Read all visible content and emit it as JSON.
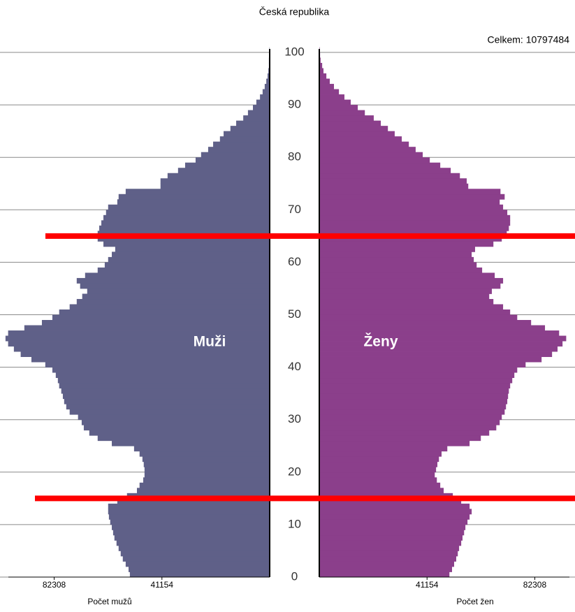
{
  "chart_data": {
    "type": "pyramid",
    "title": "Česká republika",
    "annotation": "Celkem: 10797484",
    "ages": [
      0,
      1,
      2,
      3,
      4,
      5,
      6,
      7,
      8,
      9,
      10,
      11,
      12,
      13,
      14,
      15,
      16,
      17,
      18,
      19,
      20,
      21,
      22,
      23,
      24,
      25,
      26,
      27,
      28,
      29,
      30,
      31,
      32,
      33,
      34,
      35,
      36,
      37,
      38,
      39,
      40,
      41,
      42,
      43,
      44,
      45,
      46,
      47,
      48,
      49,
      50,
      51,
      52,
      53,
      54,
      55,
      56,
      57,
      58,
      59,
      60,
      61,
      62,
      63,
      64,
      65,
      66,
      67,
      68,
      69,
      70,
      71,
      72,
      73,
      74,
      75,
      76,
      77,
      78,
      79,
      80,
      81,
      82,
      83,
      84,
      85,
      86,
      87,
      88,
      89,
      90,
      91,
      92,
      93,
      94,
      95,
      96,
      97,
      98,
      99,
      100
    ],
    "series": [
      {
        "name": "Muži",
        "side": "left",
        "color": "#5f6088",
        "axis_label": "Počet mužů",
        "values": [
          53400,
          53900,
          55000,
          56100,
          56900,
          57700,
          58500,
          59300,
          59800,
          60300,
          60900,
          61400,
          61700,
          61700,
          58200,
          54500,
          50700,
          49700,
          48300,
          47800,
          47800,
          48100,
          48600,
          49700,
          51800,
          60300,
          65700,
          68900,
          71000,
          71800,
          73200,
          76400,
          77700,
          78500,
          79000,
          79600,
          80400,
          80900,
          81700,
          83000,
          85700,
          91000,
          95100,
          97700,
          99900,
          100900,
          99900,
          93700,
          87000,
          83000,
          80400,
          76400,
          73700,
          71600,
          69700,
          72400,
          73700,
          70500,
          65700,
          63000,
          61700,
          60300,
          59000,
          63500,
          65700,
          65700,
          65100,
          64300,
          63500,
          62500,
          61700,
          58200,
          57700,
          55000,
          41700,
          41700,
          39000,
          35000,
          32300,
          28300,
          26200,
          23500,
          21600,
          19000,
          17600,
          15000,
          12800,
          10100,
          8300,
          6400,
          5100,
          3700,
          2700,
          1900,
          1300,
          800,
          500,
          300,
          300,
          130,
          80
        ]
      },
      {
        "name": "Ženy",
        "side": "right",
        "color": "#8b3f8b",
        "axis_label": "Počet žen",
        "values": [
          49700,
          50700,
          51500,
          52300,
          52900,
          53400,
          54200,
          54700,
          55300,
          55800,
          56600,
          57400,
          58200,
          57400,
          54200,
          51000,
          47500,
          46200,
          44900,
          44100,
          44600,
          45100,
          45700,
          46700,
          48900,
          57400,
          61700,
          64900,
          67600,
          68900,
          69700,
          70800,
          71300,
          71800,
          72100,
          72400,
          72900,
          73700,
          74500,
          75600,
          78800,
          84900,
          88900,
          91000,
          92900,
          94300,
          91600,
          86200,
          80900,
          75600,
          72900,
          70200,
          66500,
          64900,
          65900,
          69200,
          70200,
          67000,
          62200,
          60100,
          59000,
          58200,
          59500,
          66500,
          69700,
          71600,
          72400,
          72900,
          72900,
          71800,
          70200,
          68900,
          70800,
          69200,
          56900,
          56300,
          53700,
          50200,
          46200,
          42200,
          39500,
          36800,
          34200,
          31500,
          28800,
          26200,
          23500,
          20800,
          17400,
          14700,
          12000,
          9600,
          7500,
          5600,
          4000,
          2700,
          1600,
          1100,
          500,
          300,
          130
        ]
      }
    ],
    "ylim": [
      0,
      100
    ],
    "yticks": [
      0,
      10,
      20,
      30,
      40,
      50,
      60,
      70,
      80,
      90,
      100
    ],
    "xlim": [
      0,
      103000
    ],
    "xticks": [
      41154,
      82308
    ],
    "grid": true,
    "reference_lines": {
      "values": [
        15,
        65
      ],
      "color": "#ff0000"
    }
  }
}
